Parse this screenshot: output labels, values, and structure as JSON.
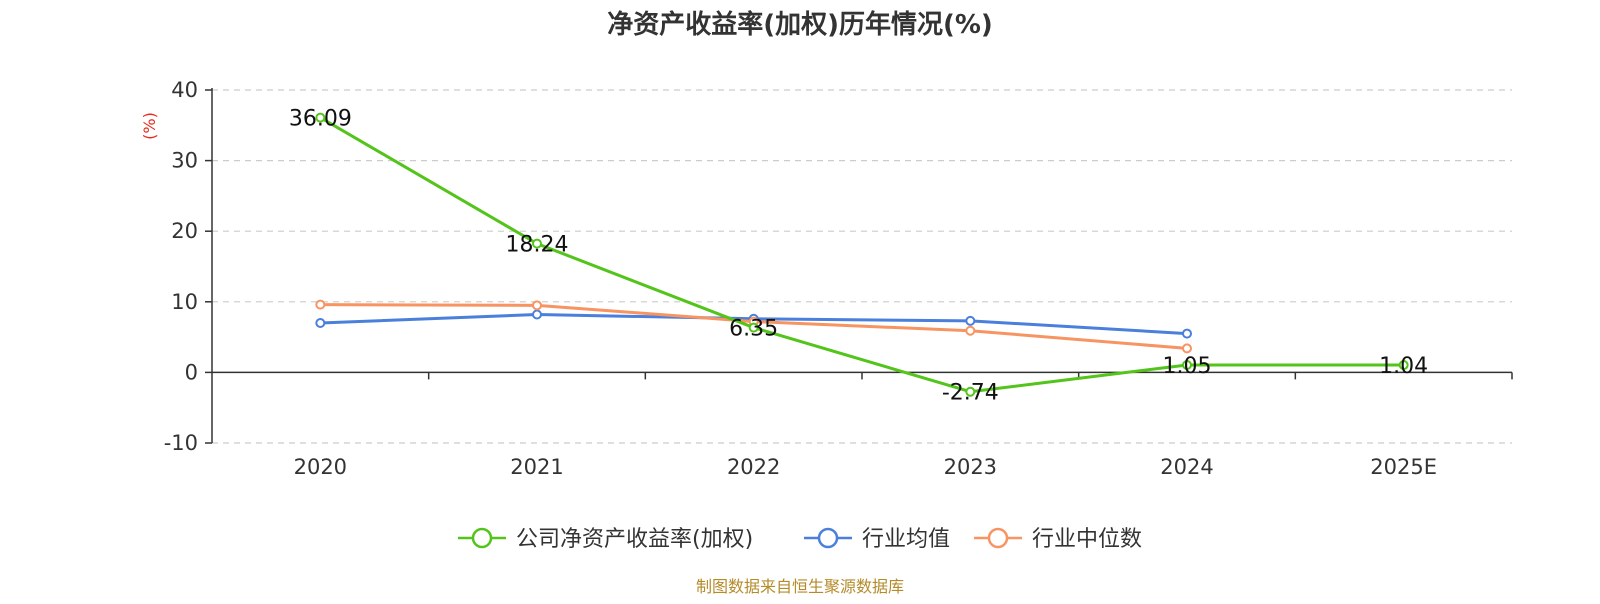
{
  "chart_data": {
    "type": "line",
    "title": "净资产收益率(加权)历年情况(%)",
    "ylabel": "(%)",
    "categories": [
      "2020",
      "2021",
      "2022",
      "2023",
      "2024",
      "2025E"
    ],
    "ylim": [
      -10,
      40
    ],
    "yticks": [
      -10,
      0,
      10,
      20,
      30,
      40
    ],
    "grid": true,
    "legend_position": "bottom",
    "series": [
      {
        "name": "公司净资产收益率(加权)",
        "color": "#52c41a",
        "values": [
          36.09,
          18.24,
          6.35,
          -2.74,
          1.05,
          1.04
        ],
        "labels": [
          "36.09",
          "18.24",
          "6.35",
          "-2.74",
          "1.05",
          "1.04"
        ]
      },
      {
        "name": "行业均值",
        "color": "#4a7fdc",
        "values": [
          7.0,
          8.2,
          7.6,
          7.3,
          5.5,
          null
        ]
      },
      {
        "name": "行业中位数",
        "color": "#f79462",
        "values": [
          9.6,
          9.5,
          7.2,
          5.9,
          3.4,
          null
        ]
      }
    ],
    "axis_color": "#333333",
    "ylabel_color": "#e8291c"
  },
  "source_text": "制图数据来自恒生聚源数据库",
  "source_color": "#b58b2a"
}
